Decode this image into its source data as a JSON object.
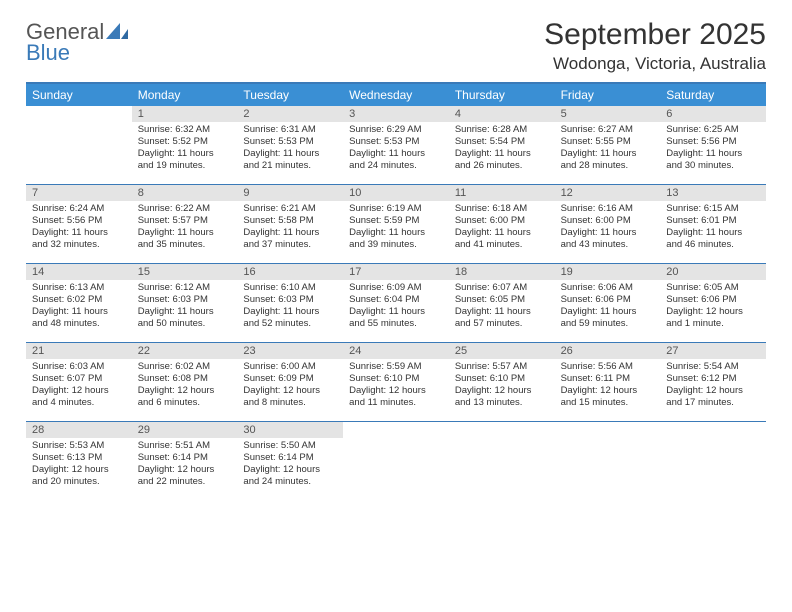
{
  "logo": {
    "word1": "General",
    "word2": "Blue"
  },
  "title": "September 2025",
  "location": "Wodonga, Victoria, Australia",
  "colors": {
    "header_bg": "#3a8fd4",
    "border": "#3a7ab8",
    "daynum_bg": "#e4e4e4",
    "text": "#333333",
    "logo_gray": "#555555",
    "logo_blue": "#3a7ab8"
  },
  "day_names": [
    "Sunday",
    "Monday",
    "Tuesday",
    "Wednesday",
    "Thursday",
    "Friday",
    "Saturday"
  ],
  "weeks": [
    [
      null,
      {
        "n": "1",
        "sr": "Sunrise: 6:32 AM",
        "ss": "Sunset: 5:52 PM",
        "d1": "Daylight: 11 hours",
        "d2": "and 19 minutes."
      },
      {
        "n": "2",
        "sr": "Sunrise: 6:31 AM",
        "ss": "Sunset: 5:53 PM",
        "d1": "Daylight: 11 hours",
        "d2": "and 21 minutes."
      },
      {
        "n": "3",
        "sr": "Sunrise: 6:29 AM",
        "ss": "Sunset: 5:53 PM",
        "d1": "Daylight: 11 hours",
        "d2": "and 24 minutes."
      },
      {
        "n": "4",
        "sr": "Sunrise: 6:28 AM",
        "ss": "Sunset: 5:54 PM",
        "d1": "Daylight: 11 hours",
        "d2": "and 26 minutes."
      },
      {
        "n": "5",
        "sr": "Sunrise: 6:27 AM",
        "ss": "Sunset: 5:55 PM",
        "d1": "Daylight: 11 hours",
        "d2": "and 28 minutes."
      },
      {
        "n": "6",
        "sr": "Sunrise: 6:25 AM",
        "ss": "Sunset: 5:56 PM",
        "d1": "Daylight: 11 hours",
        "d2": "and 30 minutes."
      }
    ],
    [
      {
        "n": "7",
        "sr": "Sunrise: 6:24 AM",
        "ss": "Sunset: 5:56 PM",
        "d1": "Daylight: 11 hours",
        "d2": "and 32 minutes."
      },
      {
        "n": "8",
        "sr": "Sunrise: 6:22 AM",
        "ss": "Sunset: 5:57 PM",
        "d1": "Daylight: 11 hours",
        "d2": "and 35 minutes."
      },
      {
        "n": "9",
        "sr": "Sunrise: 6:21 AM",
        "ss": "Sunset: 5:58 PM",
        "d1": "Daylight: 11 hours",
        "d2": "and 37 minutes."
      },
      {
        "n": "10",
        "sr": "Sunrise: 6:19 AM",
        "ss": "Sunset: 5:59 PM",
        "d1": "Daylight: 11 hours",
        "d2": "and 39 minutes."
      },
      {
        "n": "11",
        "sr": "Sunrise: 6:18 AM",
        "ss": "Sunset: 6:00 PM",
        "d1": "Daylight: 11 hours",
        "d2": "and 41 minutes."
      },
      {
        "n": "12",
        "sr": "Sunrise: 6:16 AM",
        "ss": "Sunset: 6:00 PM",
        "d1": "Daylight: 11 hours",
        "d2": "and 43 minutes."
      },
      {
        "n": "13",
        "sr": "Sunrise: 6:15 AM",
        "ss": "Sunset: 6:01 PM",
        "d1": "Daylight: 11 hours",
        "d2": "and 46 minutes."
      }
    ],
    [
      {
        "n": "14",
        "sr": "Sunrise: 6:13 AM",
        "ss": "Sunset: 6:02 PM",
        "d1": "Daylight: 11 hours",
        "d2": "and 48 minutes."
      },
      {
        "n": "15",
        "sr": "Sunrise: 6:12 AM",
        "ss": "Sunset: 6:03 PM",
        "d1": "Daylight: 11 hours",
        "d2": "and 50 minutes."
      },
      {
        "n": "16",
        "sr": "Sunrise: 6:10 AM",
        "ss": "Sunset: 6:03 PM",
        "d1": "Daylight: 11 hours",
        "d2": "and 52 minutes."
      },
      {
        "n": "17",
        "sr": "Sunrise: 6:09 AM",
        "ss": "Sunset: 6:04 PM",
        "d1": "Daylight: 11 hours",
        "d2": "and 55 minutes."
      },
      {
        "n": "18",
        "sr": "Sunrise: 6:07 AM",
        "ss": "Sunset: 6:05 PM",
        "d1": "Daylight: 11 hours",
        "d2": "and 57 minutes."
      },
      {
        "n": "19",
        "sr": "Sunrise: 6:06 AM",
        "ss": "Sunset: 6:06 PM",
        "d1": "Daylight: 11 hours",
        "d2": "and 59 minutes."
      },
      {
        "n": "20",
        "sr": "Sunrise: 6:05 AM",
        "ss": "Sunset: 6:06 PM",
        "d1": "Daylight: 12 hours",
        "d2": "and 1 minute."
      }
    ],
    [
      {
        "n": "21",
        "sr": "Sunrise: 6:03 AM",
        "ss": "Sunset: 6:07 PM",
        "d1": "Daylight: 12 hours",
        "d2": "and 4 minutes."
      },
      {
        "n": "22",
        "sr": "Sunrise: 6:02 AM",
        "ss": "Sunset: 6:08 PM",
        "d1": "Daylight: 12 hours",
        "d2": "and 6 minutes."
      },
      {
        "n": "23",
        "sr": "Sunrise: 6:00 AM",
        "ss": "Sunset: 6:09 PM",
        "d1": "Daylight: 12 hours",
        "d2": "and 8 minutes."
      },
      {
        "n": "24",
        "sr": "Sunrise: 5:59 AM",
        "ss": "Sunset: 6:10 PM",
        "d1": "Daylight: 12 hours",
        "d2": "and 11 minutes."
      },
      {
        "n": "25",
        "sr": "Sunrise: 5:57 AM",
        "ss": "Sunset: 6:10 PM",
        "d1": "Daylight: 12 hours",
        "d2": "and 13 minutes."
      },
      {
        "n": "26",
        "sr": "Sunrise: 5:56 AM",
        "ss": "Sunset: 6:11 PM",
        "d1": "Daylight: 12 hours",
        "d2": "and 15 minutes."
      },
      {
        "n": "27",
        "sr": "Sunrise: 5:54 AM",
        "ss": "Sunset: 6:12 PM",
        "d1": "Daylight: 12 hours",
        "d2": "and 17 minutes."
      }
    ],
    [
      {
        "n": "28",
        "sr": "Sunrise: 5:53 AM",
        "ss": "Sunset: 6:13 PM",
        "d1": "Daylight: 12 hours",
        "d2": "and 20 minutes."
      },
      {
        "n": "29",
        "sr": "Sunrise: 5:51 AM",
        "ss": "Sunset: 6:14 PM",
        "d1": "Daylight: 12 hours",
        "d2": "and 22 minutes."
      },
      {
        "n": "30",
        "sr": "Sunrise: 5:50 AM",
        "ss": "Sunset: 6:14 PM",
        "d1": "Daylight: 12 hours",
        "d2": "and 24 minutes."
      },
      null,
      null,
      null,
      null
    ]
  ]
}
